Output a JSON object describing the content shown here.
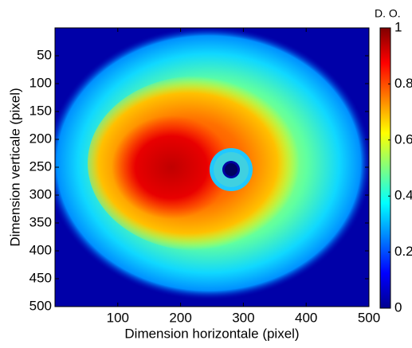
{
  "chart_data": {
    "type": "heatmap",
    "xlabel": "Dimension horizontale (pixel)",
    "ylabel": "Dimension verticale (pixel)",
    "colorbar_label": "D. O.",
    "colormap": "jet",
    "xlim": [
      0,
      500
    ],
    "xticks": [
      100,
      200,
      300,
      400,
      500
    ],
    "ylim": [
      500,
      0
    ],
    "yticks": [
      50,
      100,
      150,
      200,
      250,
      300,
      350,
      400,
      450,
      500
    ],
    "clim": [
      0,
      1
    ],
    "cticks": [
      0,
      0.2,
      0.4,
      0.6,
      0.8,
      1
    ]
  }
}
